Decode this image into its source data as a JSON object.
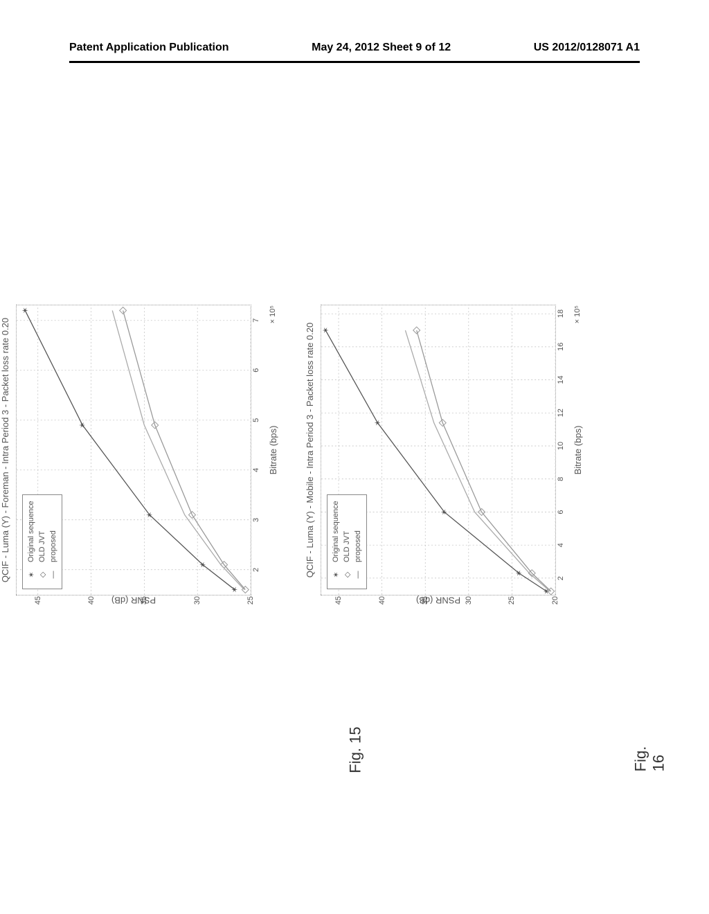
{
  "header": {
    "left": "Patent Application Publication",
    "center": "May 24, 2012  Sheet 9 of 12",
    "right": "US 2012/0128071 A1"
  },
  "fig15": {
    "label": "Fig. 15",
    "title": "QCIF - Luma (Y) - Foreman - Intra Period 3 - Packet loss rate 0.20",
    "xlabel": "Bitrate (bps)",
    "ylabel": "PSNR (dB)",
    "x_scale": "× 10⁵",
    "ylim": [
      25,
      47
    ],
    "yticks": [
      25,
      30,
      35,
      40,
      45
    ],
    "xlim": [
      1.5,
      7.3
    ],
    "xticks": [
      2,
      3,
      4,
      5,
      6,
      7
    ],
    "grid_color": "#bbbbbb",
    "series": {
      "original": {
        "label": "Original sequence",
        "color": "#555555",
        "marker": "star",
        "x": [
          1.6,
          2.1,
          3.1,
          4.9,
          7.2
        ],
        "y": [
          26.5,
          29.5,
          34.5,
          40.8,
          46.2
        ]
      },
      "old_jvt": {
        "label": "OLD JVT",
        "color": "#999999",
        "marker": "diamond",
        "x": [
          1.6,
          2.1,
          3.1,
          4.9,
          7.2
        ],
        "y": [
          25.5,
          27.5,
          30.5,
          34.0,
          37.0
        ]
      },
      "proposed": {
        "label": "proposed",
        "color": "#aaaaaa",
        "marker": "none",
        "x": [
          1.6,
          2.1,
          3.1,
          4.9,
          7.2
        ],
        "y": [
          25.6,
          27.8,
          31.2,
          35.0,
          38.0
        ]
      }
    }
  },
  "fig16": {
    "label": "Fig. 16",
    "title": "QCIF - Luma (Y) - Mobile - Intra Period 3 - Packet loss rate 0.20",
    "xlabel": "Bitrate (bps)",
    "ylabel": "PSNR (dB)",
    "x_scale": "× 10⁵",
    "ylim": [
      20,
      47
    ],
    "yticks": [
      20,
      25,
      30,
      35,
      40,
      45
    ],
    "xlim": [
      1,
      18.5
    ],
    "xticks": [
      2,
      4,
      6,
      8,
      10,
      12,
      14,
      16,
      18
    ],
    "grid_color": "#bbbbbb",
    "series": {
      "original": {
        "label": "Original sequence",
        "color": "#555555",
        "marker": "star",
        "x": [
          1.2,
          2.3,
          6.0,
          11.4,
          17.0
        ],
        "y": [
          21.0,
          24.2,
          32.8,
          40.5,
          46.5
        ]
      },
      "old_jvt": {
        "label": "OLD JVT",
        "color": "#999999",
        "marker": "diamond",
        "x": [
          1.2,
          2.3,
          6.0,
          11.4,
          17.0
        ],
        "y": [
          20.5,
          22.7,
          28.5,
          33.0,
          36.0
        ]
      },
      "proposed": {
        "label": "proposed",
        "color": "#aaaaaa",
        "marker": "none",
        "x": [
          1.2,
          2.3,
          6.0,
          11.4,
          17.0
        ],
        "y": [
          20.6,
          23.0,
          29.3,
          34.0,
          37.3
        ]
      }
    }
  },
  "legend_items": [
    "original",
    "old_jvt",
    "proposed"
  ]
}
